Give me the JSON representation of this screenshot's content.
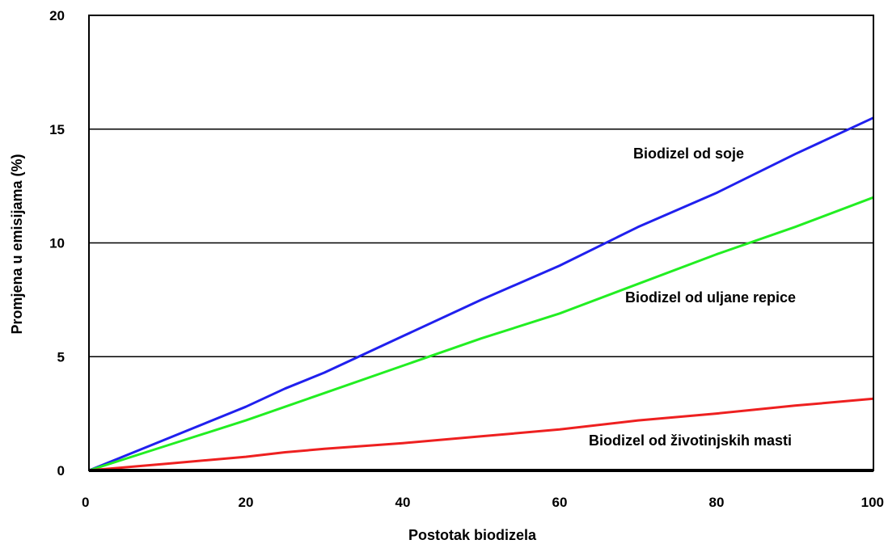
{
  "chart_data": {
    "type": "line",
    "title": "",
    "xlabel": "Postotak biodizela",
    "ylabel": "Promjena u emisijama (%)",
    "xlim": [
      0,
      100
    ],
    "ylim": [
      0,
      20
    ],
    "xticks": [
      0,
      20,
      40,
      60,
      80,
      100
    ],
    "yticks": [
      0,
      5,
      10,
      15,
      20
    ],
    "grid": "horizontal",
    "series": [
      {
        "name": "Biodizel od soje",
        "color": "#2020ee",
        "x": [
          0,
          10,
          20,
          25,
          30,
          40,
          50,
          60,
          70,
          80,
          90,
          100
        ],
        "y": [
          0,
          1.4,
          2.8,
          3.6,
          4.3,
          5.9,
          7.5,
          9.0,
          10.7,
          12.2,
          13.9,
          15.5
        ]
      },
      {
        "name": "Biodizel od uljane repice",
        "color": "#22ee22",
        "x": [
          0,
          10,
          20,
          25,
          30,
          40,
          50,
          60,
          70,
          80,
          90,
          100
        ],
        "y": [
          0,
          1.1,
          2.2,
          2.8,
          3.4,
          4.6,
          5.8,
          6.9,
          8.2,
          9.5,
          10.7,
          12.0
        ]
      },
      {
        "name": "Biodizel od životinjskih masti",
        "color": "#ee2020",
        "x": [
          0,
          10,
          20,
          25,
          30,
          40,
          50,
          60,
          70,
          80,
          90,
          100
        ],
        "y": [
          0,
          0.3,
          0.6,
          0.8,
          0.95,
          1.2,
          1.5,
          1.8,
          2.2,
          2.5,
          2.85,
          3.15
        ]
      }
    ]
  }
}
